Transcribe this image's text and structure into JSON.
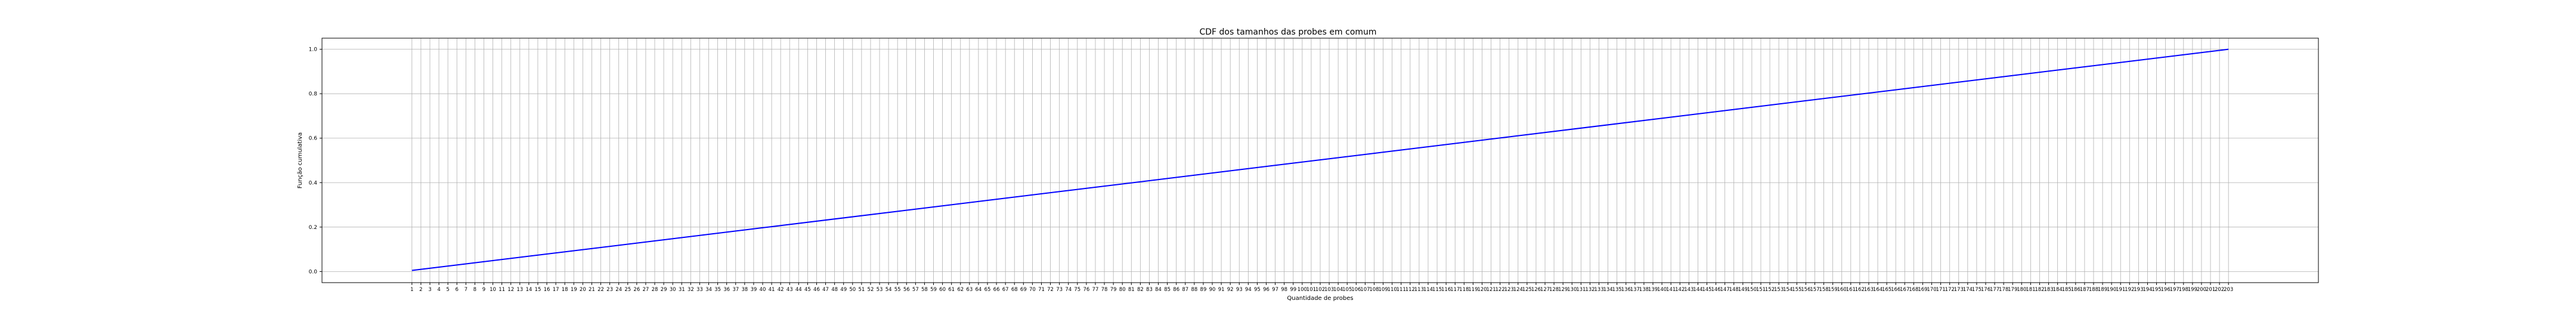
{
  "chart_data": {
    "type": "line",
    "title": "CDF dos tamanhos das probes em comum",
    "xlabel": "Quantidade de probes",
    "ylabel": "Função cumulativa",
    "x_start": 1,
    "x_end": 203,
    "xlim": [
      -9,
      213
    ],
    "ylim": [
      -0.05,
      1.05
    ],
    "y_ticks": [
      0.0,
      0.2,
      0.4,
      0.6,
      0.8,
      1.0
    ],
    "y_tick_labels": [
      "0.0",
      "0.2",
      "0.4",
      "0.6",
      "0.8",
      "1.0"
    ],
    "grid": true,
    "legend": "none",
    "series": [
      {
        "x": [
          1,
          203
        ],
        "y": [
          0.0049,
          1.0
        ],
        "color": "#0000ff"
      }
    ]
  }
}
